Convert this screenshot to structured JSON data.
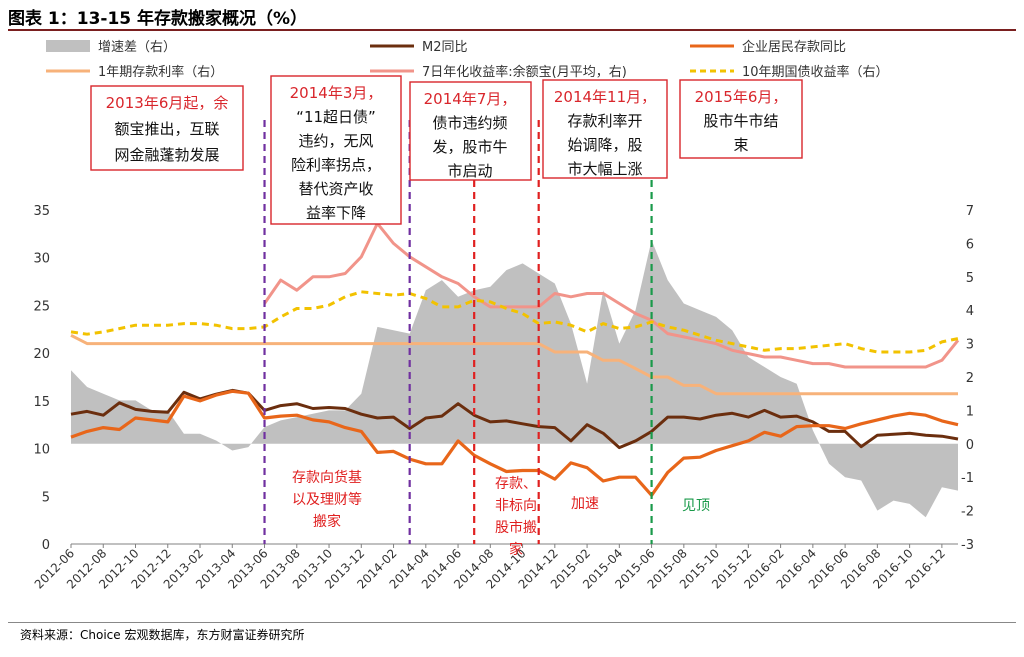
{
  "header": {
    "title": "图表 1：13-15 年存款搬家概况（%）"
  },
  "footer": {
    "source": "资料来源：Choice 宏观数据库，东方财富证券研究所"
  },
  "colors": {
    "spread": "#c0c0c0",
    "m2": "#6b2e0e",
    "deposit": "#e8661a",
    "rate1y": "#f7b27a",
    "yuebao": "#f1948a",
    "bond10y": "#f2c200",
    "callout": "#d9262c",
    "purple": "#7030a0",
    "red": "#e02020",
    "green": "#1a9a4a"
  },
  "chart_data": {
    "type": "line",
    "x": [
      "2012-06",
      "2012-07",
      "2012-08",
      "2012-09",
      "2012-10",
      "2012-11",
      "2012-12",
      "2013-01",
      "2013-02",
      "2013-03",
      "2013-04",
      "2013-05",
      "2013-06",
      "2013-07",
      "2013-08",
      "2013-09",
      "2013-10",
      "2013-11",
      "2013-12",
      "2014-01",
      "2014-02",
      "2014-03",
      "2014-04",
      "2014-05",
      "2014-06",
      "2014-07",
      "2014-08",
      "2014-09",
      "2014-10",
      "2014-11",
      "2014-12",
      "2015-01",
      "2015-02",
      "2015-03",
      "2015-04",
      "2015-05",
      "2015-06",
      "2015-07",
      "2015-08",
      "2015-09",
      "2015-10",
      "2015-11",
      "2015-12",
      "2016-01",
      "2016-02",
      "2016-03",
      "2016-04",
      "2016-05",
      "2016-06",
      "2016-07",
      "2016-08",
      "2016-09",
      "2016-10",
      "2016-11",
      "2016-12",
      "2017-01"
    ],
    "x_tick_labels": [
      "2012-06",
      "2012-08",
      "2012-10",
      "2012-12",
      "2013-02",
      "2013-04",
      "2013-06",
      "2013-08",
      "2013-10",
      "2013-12",
      "2014-02",
      "2014-04",
      "2014-06",
      "2014-08",
      "2014-10",
      "2014-12",
      "2015-02",
      "2015-04",
      "2015-06",
      "2015-08",
      "2015-10",
      "2015-12",
      "2016-02",
      "2016-04",
      "2016-06",
      "2016-08",
      "2016-10",
      "2016-12"
    ],
    "y_left": {
      "range": [
        0,
        35
      ],
      "ticks": [
        "0",
        "5",
        "10",
        "15",
        "20",
        "25",
        "30",
        "35"
      ]
    },
    "y_right": {
      "range": [
        -3,
        7
      ],
      "ticks": [
        "-3",
        "-2",
        "-1",
        "0",
        "1",
        "2",
        "3",
        "4",
        "5",
        "6",
        "7"
      ]
    },
    "grid": false,
    "legend": [
      {
        "label": "增速差（右）",
        "key": "spread",
        "kind": "area"
      },
      {
        "label": "M2同比",
        "key": "m2",
        "kind": "line"
      },
      {
        "label": "企业居民存款同比",
        "key": "deposit",
        "kind": "line"
      },
      {
        "label": "1年期存款利率（右）",
        "key": "rate1y",
        "kind": "line"
      },
      {
        "label": "7日年化收益率:余额宝(月平均，右)",
        "key": "yuebao",
        "kind": "line"
      },
      {
        "label": "10年期国债收益率（右）",
        "key": "bond10y",
        "kind": "dashed"
      }
    ],
    "series": [
      {
        "name": "增速差（右）",
        "axis": "right",
        "values": [
          2.2,
          1.7,
          1.5,
          1.3,
          1.3,
          1.0,
          1.0,
          0.3,
          0.3,
          0.1,
          -0.2,
          -0.1,
          0.5,
          0.7,
          0.8,
          0.9,
          1.0,
          1.0,
          1.5,
          3.5,
          3.4,
          3.3,
          4.6,
          4.9,
          4.4,
          4.6,
          4.7,
          5.2,
          5.4,
          5.1,
          4.8,
          3.6,
          1.8,
          4.6,
          3.0,
          4.0,
          6.1,
          4.9,
          4.2,
          4.0,
          3.8,
          3.4,
          2.6,
          2.3,
          2.0,
          1.8,
          0.4,
          -0.6,
          -1.0,
          -1.1,
          -2.0,
          -1.7,
          -1.8,
          -2.2,
          -1.3,
          -1.4
        ]
      },
      {
        "name": "M2同比",
        "axis": "left",
        "values": [
          13.6,
          13.9,
          13.5,
          14.8,
          14.1,
          13.9,
          13.8,
          15.9,
          15.2,
          15.7,
          16.1,
          15.8,
          14.0,
          14.5,
          14.7,
          14.2,
          14.3,
          14.2,
          13.6,
          13.2,
          13.3,
          12.1,
          13.2,
          13.4,
          14.7,
          13.5,
          12.8,
          12.9,
          12.6,
          12.3,
          12.2,
          10.8,
          12.5,
          11.6,
          10.1,
          10.8,
          11.8,
          13.3,
          13.3,
          13.1,
          13.5,
          13.7,
          13.3,
          14.0,
          13.3,
          13.4,
          12.8,
          11.8,
          11.8,
          10.2,
          11.4,
          11.5,
          11.6,
          11.4,
          11.3,
          11.0
        ]
      },
      {
        "name": "企业居民存款同比",
        "axis": "left",
        "values": [
          11.2,
          11.8,
          12.2,
          12.0,
          13.2,
          13.0,
          12.8,
          15.5,
          15.0,
          15.6,
          16.0,
          15.8,
          13.2,
          13.4,
          13.5,
          13.0,
          12.8,
          12.2,
          11.8,
          9.6,
          9.7,
          8.9,
          8.4,
          8.4,
          10.8,
          9.3,
          8.4,
          7.6,
          7.7,
          7.7,
          6.8,
          8.5,
          8.0,
          6.6,
          7.0,
          7.0,
          5.1,
          7.5,
          9.0,
          9.1,
          9.8,
          10.3,
          10.8,
          11.7,
          11.3,
          12.3,
          12.4,
          12.4,
          12.1,
          12.6,
          13.0,
          13.4,
          13.7,
          13.5,
          12.9,
          12.5
        ]
      },
      {
        "name": "1年期存款利率（右）",
        "axis": "right",
        "values": [
          3.25,
          3.0,
          3.0,
          3.0,
          3.0,
          3.0,
          3.0,
          3.0,
          3.0,
          3.0,
          3.0,
          3.0,
          3.0,
          3.0,
          3.0,
          3.0,
          3.0,
          3.0,
          3.0,
          3.0,
          3.0,
          3.0,
          3.0,
          3.0,
          3.0,
          3.0,
          3.0,
          3.0,
          3.0,
          3.0,
          2.75,
          2.75,
          2.75,
          2.5,
          2.5,
          2.25,
          2.0,
          2.0,
          1.75,
          1.75,
          1.5,
          1.5,
          1.5,
          1.5,
          1.5,
          1.5,
          1.5,
          1.5,
          1.5,
          1.5,
          1.5,
          1.5,
          1.5,
          1.5,
          1.5,
          1.5
        ]
      },
      {
        "name": "7日年化收益率:余额宝(月平均，右)",
        "axis": "right",
        "values": [
          null,
          null,
          null,
          null,
          null,
          null,
          null,
          null,
          null,
          null,
          null,
          null,
          4.2,
          4.9,
          4.6,
          5.0,
          5.0,
          5.1,
          5.6,
          6.6,
          6.0,
          5.6,
          5.3,
          5.0,
          4.8,
          4.4,
          4.1,
          4.1,
          4.1,
          4.1,
          4.5,
          4.4,
          4.5,
          4.5,
          4.2,
          3.9,
          3.7,
          3.3,
          3.2,
          3.1,
          3.0,
          2.8,
          2.7,
          2.6,
          2.6,
          2.5,
          2.4,
          2.4,
          2.3,
          2.3,
          2.3,
          2.3,
          2.3,
          2.3,
          2.5,
          3.1
        ]
      },
      {
        "name": "10年期国债收益率（右）",
        "axis": "right",
        "values": [
          3.35,
          3.28,
          3.35,
          3.45,
          3.55,
          3.55,
          3.55,
          3.6,
          3.6,
          3.55,
          3.45,
          3.45,
          3.5,
          3.8,
          4.05,
          4.05,
          4.15,
          4.4,
          4.55,
          4.5,
          4.45,
          4.5,
          4.35,
          4.1,
          4.1,
          4.3,
          4.25,
          4.05,
          3.9,
          3.6,
          3.65,
          3.55,
          3.35,
          3.6,
          3.45,
          3.5,
          3.65,
          3.5,
          3.4,
          3.25,
          3.1,
          3.0,
          2.9,
          2.8,
          2.85,
          2.85,
          2.9,
          2.95,
          3.0,
          2.85,
          2.75,
          2.75,
          2.75,
          2.8,
          3.05,
          3.15
        ]
      }
    ],
    "vlines": [
      {
        "at": "2013-06",
        "color": "purple"
      },
      {
        "at": "2014-03",
        "color": "purple"
      },
      {
        "at": "2014-07",
        "color": "red"
      },
      {
        "at": "2014-11",
        "color": "red"
      },
      {
        "at": "2015-06",
        "color": "green"
      }
    ],
    "callouts": [
      {
        "lines": [
          "2013年6月起，余",
          "额宝推出，互联",
          "网金融蓬勃发展"
        ]
      },
      {
        "lines": [
          "2014年3月，",
          "“11超日债”",
          "违约，无风",
          "险利率拐点，",
          "替代资产收",
          "益率下降"
        ]
      },
      {
        "lines": [
          "2014年7月，",
          "债市违约频",
          "发，股市牛",
          "市启动"
        ]
      },
      {
        "lines": [
          "2014年11月，",
          "存款利率开",
          "始调降，股",
          "市大幅上涨"
        ]
      },
      {
        "lines": [
          "2015年6月，",
          "股市牛市结",
          "束"
        ]
      }
    ],
    "annotations": [
      {
        "lines": [
          "存款向货基",
          "以及理财等",
          "搬家"
        ]
      },
      {
        "lines": [
          "存款、",
          "非标向",
          "股市搬",
          "家"
        ]
      },
      {
        "lines": [
          "加速"
        ]
      },
      {
        "lines": [
          "见顶"
        ]
      }
    ]
  }
}
